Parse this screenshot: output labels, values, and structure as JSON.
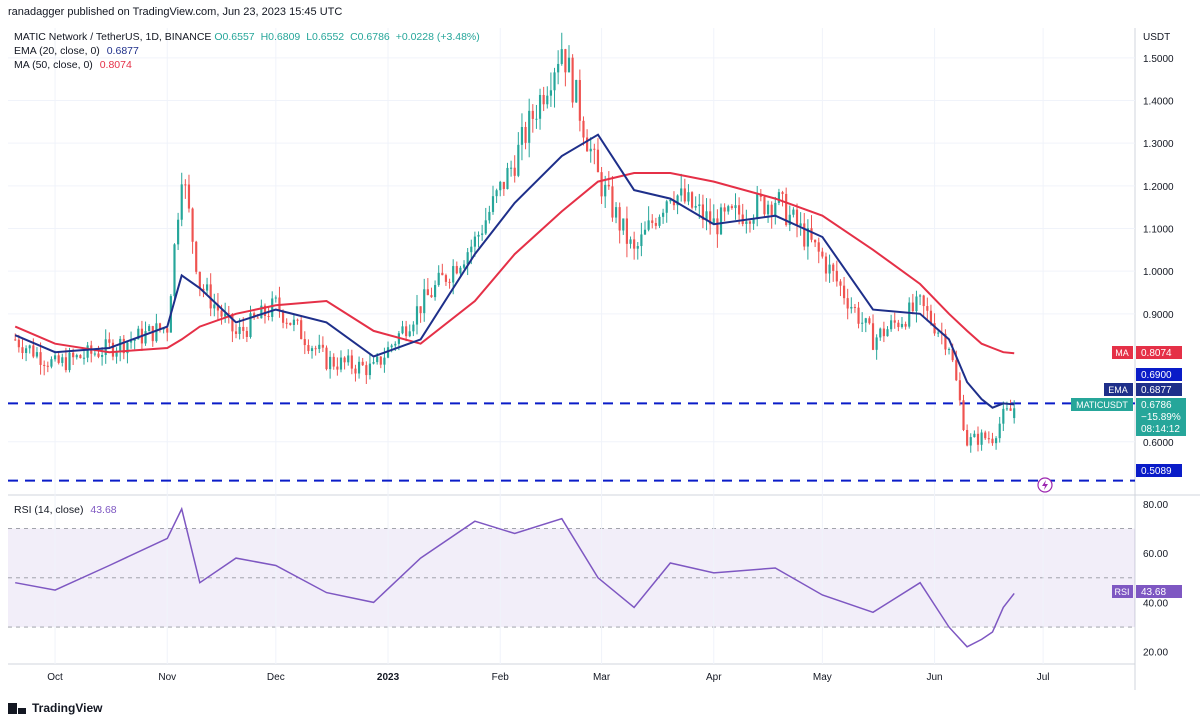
{
  "header": {
    "published": "ranadagger published on TradingView.com, Jun 23, 2023 15:45 UTC"
  },
  "legend": {
    "symbol": "MATIC Network / TetherUS, 1D, BINANCE",
    "ohlc": {
      "o": "O0.6557",
      "h": "H0.6809",
      "l": "L0.6552",
      "c": "C0.6786",
      "chg": "+0.0228 (+3.48%)"
    },
    "ema_label": "EMA (20, close, 0)",
    "ema_value": "0.6877",
    "ma_label": "MA (50, close, 0)",
    "ma_value": "0.8074",
    "rsi_label": "RSI (14, close)",
    "rsi_value": "43.68"
  },
  "axis": {
    "currency": "USDT",
    "price_ticks": [
      "1.5000",
      "1.4000",
      "1.3000",
      "1.2000",
      "1.1000",
      "1.0000",
      "0.9000",
      "0.6000"
    ],
    "rsi_ticks": [
      "80.00",
      "60.00",
      "40.00",
      "20.00"
    ],
    "time_ticks": [
      "Oct",
      "Nov",
      "Dec",
      "2023",
      "Feb",
      "Mar",
      "Apr",
      "May",
      "Jun",
      "Jul"
    ]
  },
  "tags": {
    "ma": {
      "label": "MA",
      "value": "0.8074"
    },
    "level_high": "0.6900",
    "ema": {
      "label": "EMA",
      "value": "0.6877"
    },
    "symbol": {
      "label": "MATICUSDT",
      "value": "0.6786",
      "change": "−15.89%",
      "countdown": "08:14:12"
    },
    "level_low": "0.5089",
    "rsi": {
      "label": "RSI",
      "value": "43.68"
    }
  },
  "footer": {
    "brand": "TradingView"
  },
  "colors": {
    "up": "#26a69a",
    "down": "#ef5350",
    "ema": "#1e2f8a",
    "ma": "#e53047",
    "rsi": "#7e57c2",
    "level": "#0a1cc8"
  },
  "chart_data": {
    "type": "candlestick",
    "title": "MATIC Network / TetherUS, 1D, BINANCE",
    "price_ylim": [
      0.48,
      1.57
    ],
    "rsi_ylim": [
      15,
      82
    ],
    "horizontal_levels": [
      0.69,
      0.5089
    ],
    "rsi_bands": [
      30,
      70
    ],
    "series": [
      {
        "name": "MATICUSDT",
        "type": "candlestick",
        "x": [
          "2022-09-20",
          "2022-10-01",
          "2022-10-16",
          "2022-11-01",
          "2022-11-05",
          "2022-11-10",
          "2022-11-20",
          "2022-12-01",
          "2022-12-15",
          "2022-12-28",
          "2023-01-10",
          "2023-01-25",
          "2023-02-05",
          "2023-02-18",
          "2023-02-28",
          "2023-03-10",
          "2023-03-20",
          "2023-04-01",
          "2023-04-18",
          "2023-05-01",
          "2023-05-15",
          "2023-05-28",
          "2023-06-05",
          "2023-06-10",
          "2023-06-14",
          "2023-06-17",
          "2023-06-20",
          "2023-06-23"
        ],
        "close": [
          0.84,
          0.78,
          0.82,
          0.87,
          1.24,
          0.97,
          0.85,
          0.92,
          0.79,
          0.77,
          0.92,
          1.07,
          1.26,
          1.53,
          1.22,
          1.04,
          1.19,
          1.11,
          1.17,
          1.03,
          0.84,
          0.92,
          0.83,
          0.6,
          0.61,
          0.61,
          0.66,
          0.6786
        ]
      },
      {
        "name": "EMA (20, close, 0)",
        "values": [
          0.85,
          0.81,
          0.82,
          0.87,
          0.99,
          0.96,
          0.88,
          0.91,
          0.88,
          0.8,
          0.84,
          1.04,
          1.16,
          1.27,
          1.32,
          1.19,
          1.17,
          1.11,
          1.13,
          1.08,
          0.91,
          0.9,
          0.84,
          0.74,
          0.7,
          0.68,
          0.69,
          0.6877
        ]
      },
      {
        "name": "MA (50, close, 0)",
        "values": [
          0.87,
          0.83,
          0.81,
          0.82,
          0.84,
          0.87,
          0.9,
          0.92,
          0.93,
          0.86,
          0.83,
          0.93,
          1.04,
          1.14,
          1.21,
          1.23,
          1.23,
          1.21,
          1.17,
          1.13,
          1.05,
          0.97,
          0.9,
          0.86,
          0.83,
          0.82,
          0.81,
          0.8074
        ]
      },
      {
        "name": "RSI (14, close)",
        "values": [
          48,
          45,
          55,
          66,
          78,
          48,
          58,
          55,
          44,
          40,
          58,
          73,
          68,
          74,
          50,
          38,
          56,
          52,
          54,
          43,
          36,
          48,
          30,
          22,
          25,
          28,
          38,
          43.68
        ]
      }
    ]
  }
}
